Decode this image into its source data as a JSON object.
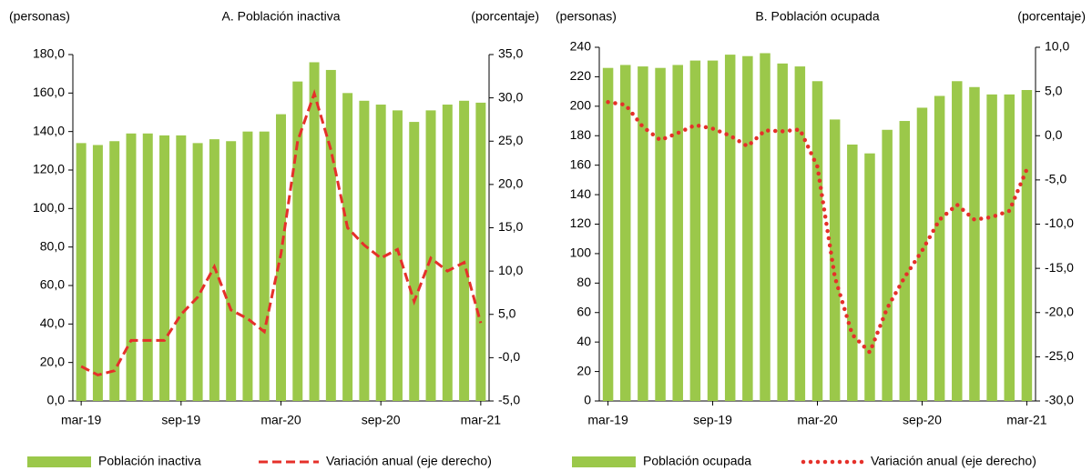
{
  "chart_data": [
    {
      "type": "combo",
      "title": "A. Población inactiva",
      "y_label": "(personas)",
      "y2_label": "(porcentaje)",
      "categories": [
        "mar-19",
        null,
        null,
        null,
        null,
        null,
        "sep-19",
        null,
        null,
        null,
        null,
        null,
        "mar-20",
        null,
        null,
        null,
        null,
        null,
        "sep-20",
        null,
        null,
        null,
        null,
        null,
        "mar-21"
      ],
      "series": [
        {
          "name": "Población inactiva",
          "type": "bar",
          "color": "#9bc84a",
          "values": [
            134,
            133,
            135,
            139,
            139,
            138,
            138,
            134,
            136,
            135,
            140,
            140,
            149,
            166,
            176,
            172,
            160,
            156,
            154,
            151,
            145,
            151,
            154,
            156,
            155
          ]
        },
        {
          "name": "Variación anual (eje derecho)",
          "type": "line",
          "axis": "y2",
          "color": "#e5302a",
          "line_style": "dashed",
          "values": [
            -1,
            -2,
            -1.5,
            2,
            2,
            2,
            5,
            7,
            10.5,
            5.5,
            4.5,
            3,
            12,
            25,
            30.5,
            24,
            15,
            13,
            11.5,
            12.5,
            6.5,
            11.5,
            10,
            11,
            4
          ]
        }
      ],
      "ylim": [
        0,
        180
      ],
      "yticks": [
        {
          "value": 0,
          "label": "0,0"
        },
        {
          "value": 20,
          "label": "20,0"
        },
        {
          "value": 40,
          "label": "40,0"
        },
        {
          "value": 60,
          "label": "60,0"
        },
        {
          "value": 80,
          "label": "80,0"
        },
        {
          "value": 100,
          "label": "100,0"
        },
        {
          "value": 120,
          "label": "120,0"
        },
        {
          "value": 140,
          "label": "140,0"
        },
        {
          "value": 160,
          "label": "160,0"
        },
        {
          "value": 180,
          "label": "180,0"
        }
      ],
      "y2lim": [
        -5,
        35
      ],
      "y2ticks": [
        {
          "value": -5,
          "label": "-5,0"
        },
        {
          "value": 0,
          "label": "-0,0"
        },
        {
          "value": 5,
          "label": "5,0"
        },
        {
          "value": 10,
          "label": "10,0"
        },
        {
          "value": 15,
          "label": "15,0"
        },
        {
          "value": 20,
          "label": "20,0"
        },
        {
          "value": 25,
          "label": "25,0"
        },
        {
          "value": 30,
          "label": "30,0"
        },
        {
          "value": 35,
          "label": "35,0"
        }
      ],
      "legend": "bottom"
    },
    {
      "type": "combo",
      "title": "B. Población ocupada",
      "y_label": "(personas)",
      "y2_label": "(porcentaje)",
      "categories": [
        "mar-19",
        null,
        null,
        null,
        null,
        null,
        "sep-19",
        null,
        null,
        null,
        null,
        null,
        "mar-20",
        null,
        null,
        null,
        null,
        null,
        "sep-20",
        null,
        null,
        null,
        null,
        null,
        "mar-21"
      ],
      "series": [
        {
          "name": "Población ocupada",
          "type": "bar",
          "color": "#9bc84a",
          "values": [
            226,
            228,
            227,
            226,
            228,
            231,
            231,
            235,
            234,
            236,
            229,
            227,
            217,
            191,
            174,
            168,
            184,
            190,
            199,
            207,
            217,
            213,
            208,
            208,
            211
          ]
        },
        {
          "name": "Variación anual (eje derecho)",
          "type": "line",
          "axis": "y2",
          "color": "#e5302a",
          "line_style": "dotted",
          "values": [
            3.8,
            3.5,
            1,
            -0.5,
            0.3,
            1.2,
            0.8,
            0,
            -1.2,
            0.6,
            0.5,
            0.7,
            -3.5,
            -16,
            -22.5,
            -24.5,
            -19.5,
            -16,
            -13,
            -9.5,
            -7.8,
            -9.5,
            -9.2,
            -8.5,
            -3.8
          ]
        }
      ],
      "ylim": [
        0,
        240
      ],
      "yticks": [
        0,
        20,
        40,
        60,
        80,
        100,
        120,
        140,
        160,
        180,
        200,
        220,
        240
      ],
      "y2lim": [
        -30,
        10
      ],
      "y2ticks": [
        {
          "value": -30,
          "label": "-30,0"
        },
        {
          "value": -25,
          "label": "-25,0"
        },
        {
          "value": -20,
          "label": "-20,0"
        },
        {
          "value": -15,
          "label": "-15,0"
        },
        {
          "value": -10,
          "label": "-10,0"
        },
        {
          "value": -5,
          "label": "-5,0"
        },
        {
          "value": 0,
          "label": "0,0"
        },
        {
          "value": 5,
          "label": "5,0"
        },
        {
          "value": 10,
          "label": "10,0"
        }
      ],
      "legend": "bottom"
    }
  ]
}
